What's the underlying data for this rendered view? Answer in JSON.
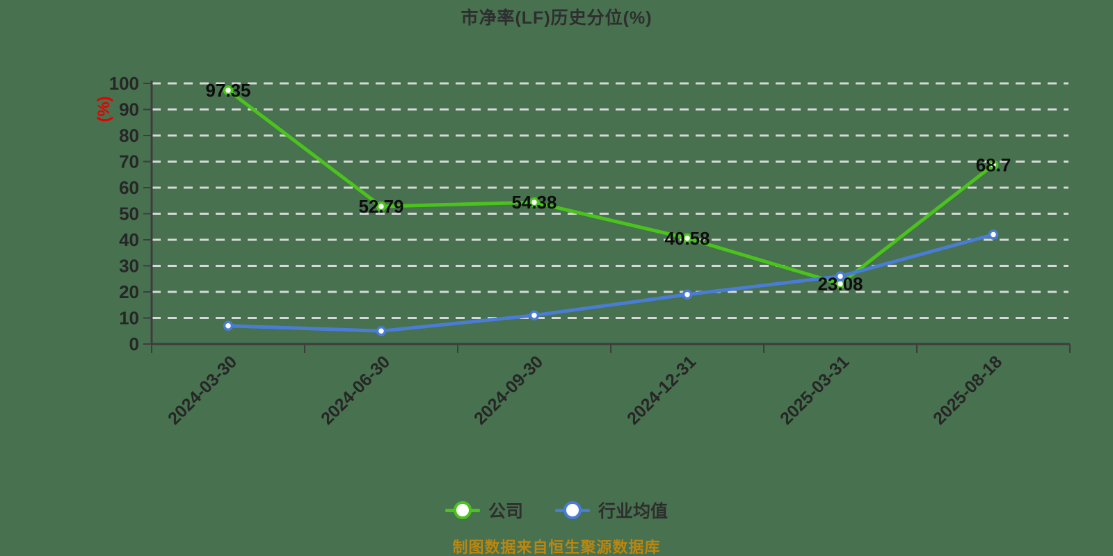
{
  "page": {
    "background_color": "#47714f"
  },
  "theme": {
    "title_color": "#2e2e2e",
    "text_color": "#262626",
    "axis_color": "#3d3d3d",
    "grid_color": "#d8d8d8",
    "data_label_color": "#0d0d0d",
    "legend_text_color": "#2e2e2e",
    "marker_fill": "#ffffff"
  },
  "chart": {
    "title": "市净率(LF)历史分位(%)"
  },
  "footer": {
    "source_note": "制图数据来自恒生聚源数据库",
    "source_note_color": "#bc860e"
  },
  "chart_data": {
    "type": "line",
    "title": "市净率(LF)历史分位(%)",
    "categories": [
      "2024-03-30",
      "2024-06-30",
      "2024-09-30",
      "2024-12-31",
      "2025-03-31",
      "2025-08-18"
    ],
    "series": [
      {
        "id": "company",
        "name": "公司",
        "color": "#4bc31d",
        "values": [
          97.35,
          52.79,
          54.38,
          40.58,
          23.08,
          68.7
        ],
        "show_labels": true,
        "marker": "circle-white-fill"
      },
      {
        "id": "industry-average",
        "name": "行业均值",
        "color": "#4a7cd5",
        "values": [
          7,
          5,
          11,
          19,
          26,
          42
        ],
        "show_labels": false,
        "marker": "circle-white-fill"
      }
    ],
    "xlabel": "",
    "ylabel": "(%)",
    "ylabel_color": "#e60000",
    "ylim": [
      0,
      100
    ],
    "ytick_interval": 10,
    "yticks": [
      0,
      10,
      20,
      30,
      40,
      50,
      60,
      70,
      80,
      90,
      100
    ],
    "grid": "horizontal-dashed",
    "x_label_rotation": 45,
    "legend_position": "bottom"
  }
}
